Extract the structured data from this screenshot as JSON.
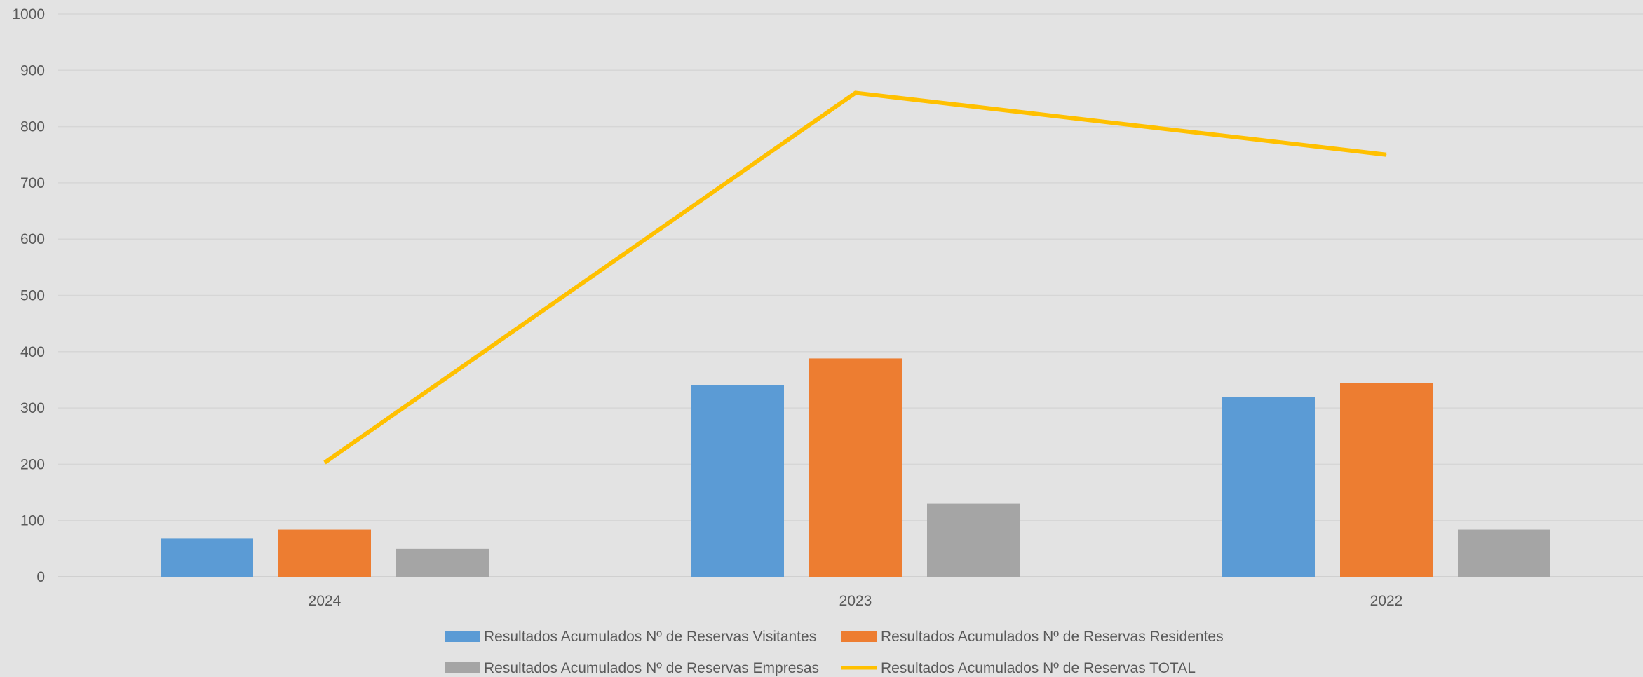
{
  "chart_data": {
    "type": "bar",
    "categories": [
      "2024",
      "2023",
      "2022"
    ],
    "ylim": [
      0,
      1000
    ],
    "yticks": [
      0,
      100,
      200,
      300,
      400,
      500,
      600,
      700,
      800,
      900,
      1000
    ],
    "grid": true,
    "legend_position": "bottom",
    "title": "",
    "xlabel": "",
    "ylabel": "",
    "series": [
      {
        "name": "Resultados Acumulados Nº de Reservas Visitantes",
        "type": "bar",
        "color": "#5b9bd5",
        "values": [
          68,
          340,
          320
        ]
      },
      {
        "name": "Resultados Acumulados Nº de Reservas Residentes",
        "type": "bar",
        "color": "#ed7d31",
        "values": [
          84,
          388,
          344
        ]
      },
      {
        "name": "Resultados Acumulados Nº de Reservas Empresas",
        "type": "bar",
        "color": "#a5a5a5",
        "values": [
          50,
          130,
          84
        ]
      },
      {
        "name": "Resultados Acumulados Nº de Reservas TOTAL",
        "type": "line",
        "color": "#ffc000",
        "values": [
          203,
          860,
          750
        ]
      }
    ]
  }
}
